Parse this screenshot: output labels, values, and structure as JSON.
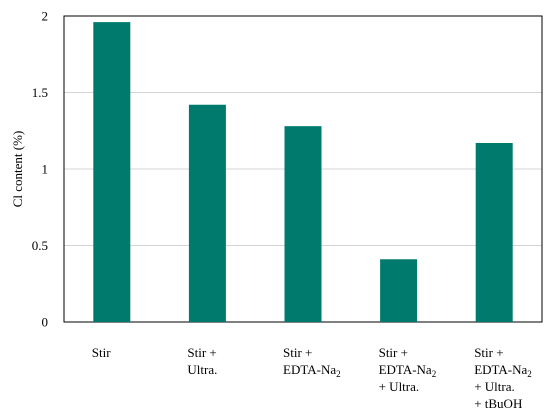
{
  "chart_data": {
    "type": "bar",
    "title": "",
    "xlabel": "",
    "ylabel": "Cl content (%)",
    "ylim": [
      0,
      2
    ],
    "yticks": [
      0,
      0.5,
      1,
      1.5,
      2
    ],
    "ytick_labels": [
      "0",
      "0.5",
      "1",
      "1.5",
      "2"
    ],
    "grid": true,
    "legend": "none",
    "bar_color": "#007a6c",
    "categories": [
      [
        "Stir"
      ],
      [
        "Stir +",
        "Ultra."
      ],
      [
        "Stir +",
        "EDTA-Na2"
      ],
      [
        "Stir +",
        "EDTA-Na2",
        "+ Ultra."
      ],
      [
        "Stir +",
        "EDTA-Na2",
        "+ Ultra.",
        "+ tBuOH"
      ]
    ],
    "values": [
      1.96,
      1.42,
      1.28,
      0.41,
      1.17
    ]
  }
}
